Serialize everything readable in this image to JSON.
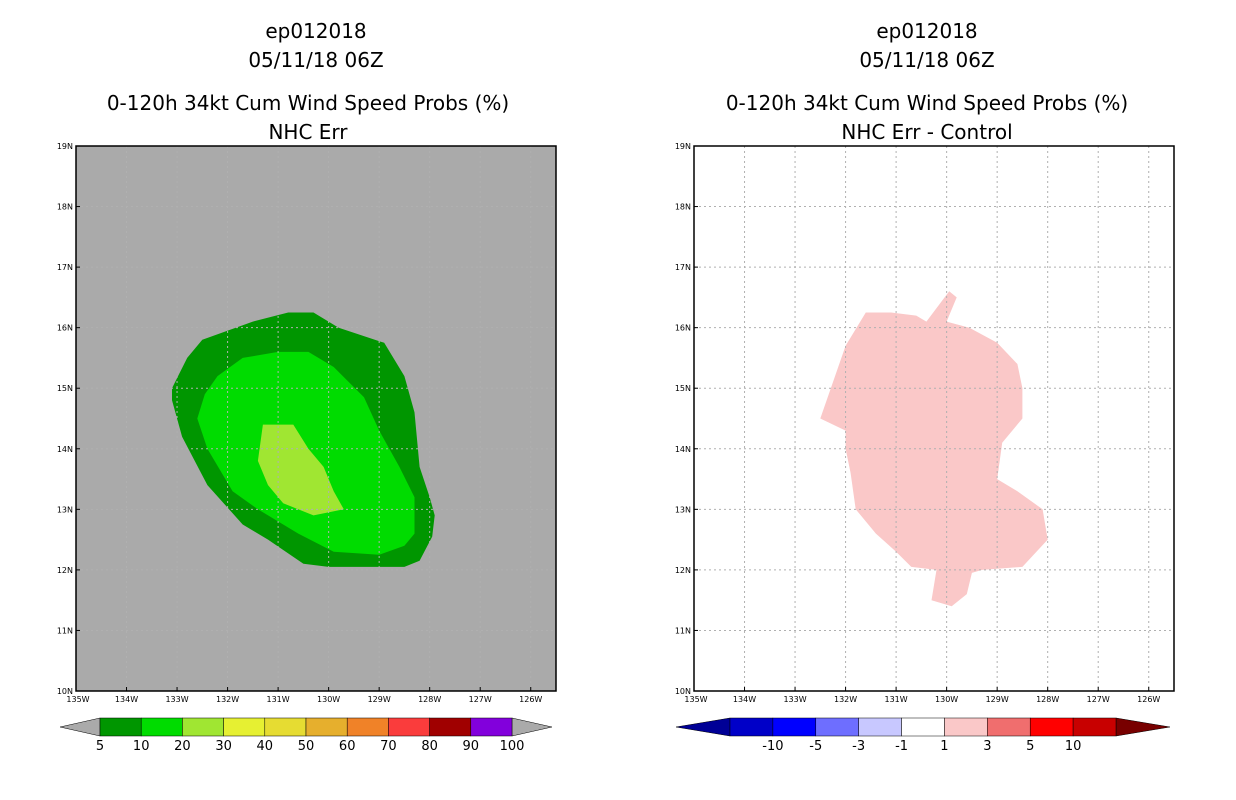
{
  "chart_data": [
    {
      "type": "heatmap",
      "title": [
        "ep012018",
        "05/11/18 06Z",
        "0-120h 34kt Cum Wind Speed Probs (%)",
        "NHC Err"
      ],
      "xlabel": "",
      "ylabel": "",
      "xlim": [
        -135,
        -125.5
      ],
      "ylim": [
        10,
        19
      ],
      "x_ticks": [
        -135,
        -134,
        -133,
        -132,
        -131,
        -130,
        -129,
        -128,
        -127,
        -126
      ],
      "x_tick_labels": [
        "135W",
        "134W",
        "133W",
        "132W",
        "131W",
        "130W",
        "129W",
        "128W",
        "127W",
        "126W"
      ],
      "y_ticks": [
        10,
        11,
        12,
        13,
        14,
        15,
        16,
        17,
        18,
        19
      ],
      "y_tick_labels": [
        "10N",
        "11N",
        "12N",
        "13N",
        "14N",
        "15N",
        "16N",
        "17N",
        "18N",
        "19N"
      ],
      "grid": true,
      "background": "#aaaaaa",
      "contours": [
        {
          "level": "5-10",
          "color": "#009600",
          "points": [
            [
              -133.1,
              15.0
            ],
            [
              -132.8,
              15.5
            ],
            [
              -132.5,
              15.8
            ],
            [
              -131.5,
              16.1
            ],
            [
              -130.8,
              16.25
            ],
            [
              -130.3,
              16.25
            ],
            [
              -129.8,
              16.0
            ],
            [
              -128.9,
              15.75
            ],
            [
              -128.5,
              15.2
            ],
            [
              -128.3,
              14.6
            ],
            [
              -128.2,
              13.7
            ],
            [
              -128.0,
              13.2
            ],
            [
              -127.9,
              12.9
            ],
            [
              -127.95,
              12.55
            ],
            [
              -128.2,
              12.15
            ],
            [
              -128.5,
              12.05
            ],
            [
              -129.0,
              12.05
            ],
            [
              -130.0,
              12.05
            ],
            [
              -130.5,
              12.1
            ],
            [
              -131.2,
              12.5
            ],
            [
              -131.7,
              12.75
            ],
            [
              -132.4,
              13.4
            ],
            [
              -132.9,
              14.2
            ],
            [
              -133.1,
              14.8
            ]
          ]
        },
        {
          "level": "10-20",
          "color": "#00dc00",
          "points": [
            [
              -132.45,
              14.9
            ],
            [
              -132.2,
              15.2
            ],
            [
              -131.7,
              15.5
            ],
            [
              -131.0,
              15.6
            ],
            [
              -130.4,
              15.6
            ],
            [
              -129.9,
              15.35
            ],
            [
              -129.3,
              14.85
            ],
            [
              -129.0,
              14.3
            ],
            [
              -128.6,
              13.7
            ],
            [
              -128.3,
              13.2
            ],
            [
              -128.3,
              12.6
            ],
            [
              -128.5,
              12.4
            ],
            [
              -129.0,
              12.25
            ],
            [
              -129.9,
              12.3
            ],
            [
              -130.6,
              12.6
            ],
            [
              -131.4,
              13.0
            ],
            [
              -131.9,
              13.3
            ],
            [
              -132.4,
              14.0
            ],
            [
              -132.6,
              14.5
            ]
          ]
        },
        {
          "level": "20-30",
          "color": "#a0e632",
          "points": [
            [
              -131.3,
              14.4
            ],
            [
              -130.7,
              14.4
            ],
            [
              -130.4,
              14.0
            ],
            [
              -130.1,
              13.7
            ],
            [
              -129.9,
              13.3
            ],
            [
              -129.7,
              13.0
            ],
            [
              -130.3,
              12.9
            ],
            [
              -130.9,
              13.1
            ],
            [
              -131.2,
              13.4
            ],
            [
              -131.4,
              13.8
            ]
          ]
        }
      ],
      "colorbar": {
        "labels": [
          "5",
          "10",
          "20",
          "30",
          "40",
          "50",
          "60",
          "70",
          "80",
          "90",
          "100"
        ],
        "colors": [
          "#009600",
          "#00dc00",
          "#a0e632",
          "#e6f032",
          "#e6dc32",
          "#e6af2d",
          "#f08228",
          "#fa3c3c",
          "#a00000",
          "#8200dc"
        ],
        "lower_extend_color": "#aaaaaa",
        "upper_extend_color": "#aaaaaa"
      }
    },
    {
      "type": "heatmap",
      "title": [
        "ep012018",
        "05/11/18 06Z",
        "0-120h 34kt Cum Wind Speed Probs (%)",
        "NHC Err - Control"
      ],
      "xlabel": "",
      "ylabel": "",
      "xlim": [
        -135,
        -125.5
      ],
      "ylim": [
        10,
        19
      ],
      "x_ticks": [
        -135,
        -134,
        -133,
        -132,
        -131,
        -130,
        -129,
        -128,
        -127,
        -126
      ],
      "x_tick_labels": [
        "135W",
        "134W",
        "133W",
        "132W",
        "131W",
        "130W",
        "129W",
        "128W",
        "127W",
        "126W"
      ],
      "y_ticks": [
        10,
        11,
        12,
        13,
        14,
        15,
        16,
        17,
        18,
        19
      ],
      "y_tick_labels": [
        "10N",
        "11N",
        "12N",
        "13N",
        "14N",
        "15N",
        "16N",
        "17N",
        "18N",
        "19N"
      ],
      "grid": true,
      "background": "#ffffff",
      "contours": [
        {
          "level": "1-3",
          "color": "#fac8c8",
          "points": [
            [
              -132.5,
              14.5
            ],
            [
              -132.0,
              15.7
            ],
            [
              -131.6,
              16.25
            ],
            [
              -131.1,
              16.25
            ],
            [
              -130.6,
              16.2
            ],
            [
              -130.4,
              16.1
            ],
            [
              -129.95,
              16.6
            ],
            [
              -129.8,
              16.5
            ],
            [
              -130.0,
              16.1
            ],
            [
              -129.55,
              16.0
            ],
            [
              -129.0,
              15.75
            ],
            [
              -128.6,
              15.4
            ],
            [
              -128.5,
              15.0
            ],
            [
              -128.5,
              14.5
            ],
            [
              -128.9,
              14.1
            ],
            [
              -129.0,
              13.5
            ],
            [
              -128.6,
              13.3
            ],
            [
              -128.1,
              13.0
            ],
            [
              -128.0,
              12.5
            ],
            [
              -128.5,
              12.05
            ],
            [
              -129.3,
              12.0
            ],
            [
              -129.5,
              11.95
            ],
            [
              -129.6,
              11.6
            ],
            [
              -129.9,
              11.4
            ],
            [
              -130.3,
              11.5
            ],
            [
              -130.2,
              12.0
            ],
            [
              -130.7,
              12.05
            ],
            [
              -131.0,
              12.3
            ],
            [
              -131.4,
              12.6
            ],
            [
              -131.8,
              13.0
            ],
            [
              -131.9,
              13.6
            ],
            [
              -132.0,
              14.0
            ],
            [
              -132.0,
              14.3
            ]
          ]
        }
      ],
      "colorbar": {
        "labels": [
          "-10",
          "-5",
          "-3",
          "-1",
          "1",
          "3",
          "5",
          "10"
        ],
        "colors": [
          "#0000c8",
          "#0000ff",
          "#6e6eff",
          "#c8c8ff",
          "#ffffff",
          "#fac8c8",
          "#f06e6e",
          "#ff0000",
          "#c80000"
        ],
        "lower_extend_color": "#000096",
        "upper_extend_color": "#780000"
      }
    }
  ]
}
